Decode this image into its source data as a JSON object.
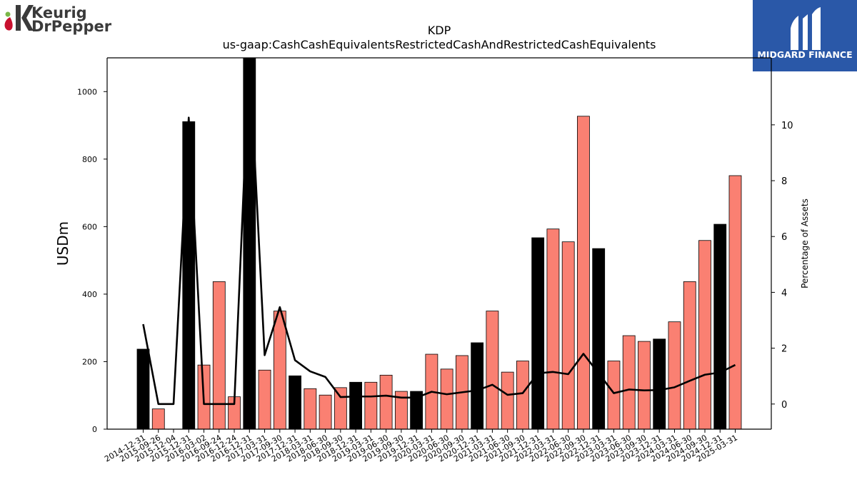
{
  "brand_left": {
    "logo_line1": "Keurig",
    "logo_line2": "DrPepper",
    "colors": {
      "green": "#7ab648",
      "red": "#c8102e",
      "dark": "#3a3a3a"
    }
  },
  "brand_right": {
    "logo_text": "MIDGARD FINANCE",
    "colors": {
      "bg": "#2a58a8",
      "fg": "#ffffff"
    }
  },
  "chart_data": {
    "type": "bar",
    "title": "KDP",
    "subtitle": "us-gaap:CashCashEquivalentsRestrictedCashAndRestrictedCashEquivalents",
    "ylabel": "USDm",
    "ylabel_right": "Percentage of Assets",
    "ylim": [
      0,
      1100
    ],
    "ylim_right": [
      -0.9,
      12.4
    ],
    "yticks": [
      0,
      200,
      400,
      600,
      800,
      1000
    ],
    "yticks_right": [
      0,
      2,
      4,
      6,
      8,
      10
    ],
    "categories": [
      "2014-12-31",
      "2015-09-26",
      "2015-12-04",
      "2015-12-31",
      "2016-03-02",
      "2016-09-24",
      "2016-12-24",
      "2016-12-31",
      "2017-03-31",
      "2017-09-30",
      "2017-12-31",
      "2018-03-31",
      "2018-06-30",
      "2018-09-30",
      "2018-12-31",
      "2019-03-31",
      "2019-06-30",
      "2019-09-30",
      "2019-12-31",
      "2020-03-31",
      "2020-06-30",
      "2020-09-30",
      "2020-12-31",
      "2021-03-31",
      "2021-06-30",
      "2021-09-30",
      "2021-12-31",
      "2022-03-31",
      "2022-06-30",
      "2022-09-30",
      "2022-12-31",
      "2023-03-31",
      "2023-06-30",
      "2023-09-30",
      "2023-12-31",
      "2024-03-31",
      "2024-06-30",
      "2024-09-30",
      "2024-12-31",
      "2025-03-31"
    ],
    "series": [
      {
        "kind": "bar",
        "values": [
          237,
          60,
          0,
          911,
          190,
          437,
          96,
          1150,
          175,
          350,
          158,
          120,
          101,
          123,
          139,
          139,
          160,
          112,
          112,
          222,
          178,
          218,
          256,
          350,
          169,
          202,
          567,
          593,
          555,
          927,
          535,
          202,
          277,
          260,
          267,
          318,
          437,
          559,
          607,
          751
        ],
        "fiscal_year_end": [
          true,
          false,
          false,
          true,
          false,
          false,
          false,
          true,
          false,
          false,
          true,
          false,
          false,
          false,
          true,
          false,
          false,
          false,
          true,
          false,
          false,
          false,
          true,
          false,
          false,
          false,
          true,
          false,
          false,
          false,
          true,
          false,
          false,
          false,
          true,
          false,
          false,
          false,
          true,
          false
        ],
        "colors": {
          "year_end": "#000000",
          "interim": "#fa8072",
          "edge": "#000000"
        }
      },
      {
        "kind": "line",
        "axis": "right",
        "values": [
          2.86,
          0.0,
          0.0,
          10.26,
          0.0,
          0.0,
          0.0,
          12.5,
          1.75,
          3.47,
          1.57,
          1.17,
          0.97,
          0.25,
          0.27,
          0.27,
          0.3,
          0.23,
          0.23,
          0.44,
          0.35,
          0.42,
          0.49,
          0.69,
          0.33,
          0.39,
          1.1,
          1.15,
          1.07,
          1.8,
          1.1,
          0.39,
          0.52,
          0.49,
          0.5,
          0.6,
          0.83,
          1.05,
          1.13,
          1.4
        ],
        "color": "#000000"
      }
    ],
    "grid": false,
    "legend": "none"
  }
}
